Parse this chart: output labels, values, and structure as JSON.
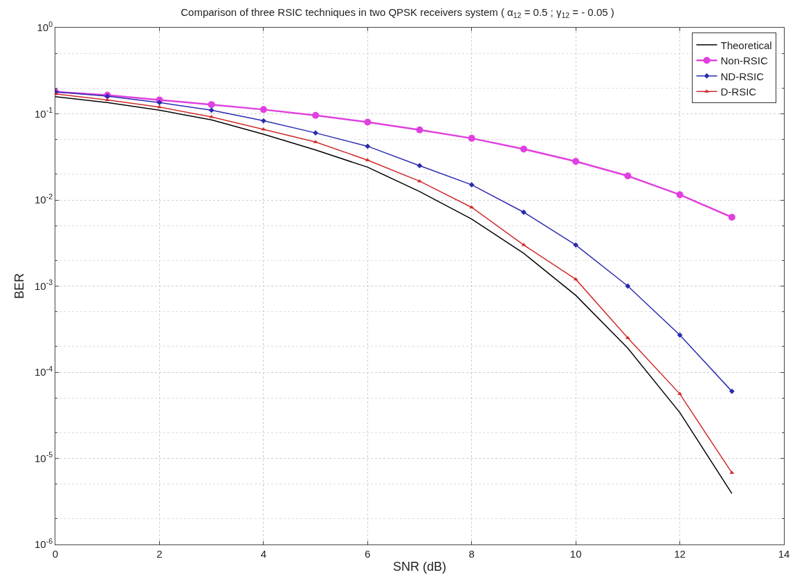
{
  "chart_data": {
    "type": "line",
    "title": "Comparison of three RSIC techniques in two QPSK receivers system ( α$_{12}$ = 0.5 ; γ$_{12}$ = - 0.05 )",
    "xlabel": "SNR (dB)",
    "ylabel": "BER",
    "x": [
      0,
      1,
      2,
      3,
      4,
      5,
      6,
      7,
      8,
      9,
      10,
      11,
      12,
      13
    ],
    "series": [
      {
        "name": "Theoretical",
        "color": "#000000",
        "marker": "none",
        "values": [
          0.158,
          0.135,
          0.11,
          0.085,
          0.058,
          0.038,
          0.024,
          0.0125,
          0.006,
          0.0024,
          0.00078,
          0.00019,
          3.4e-05,
          3.9e-06
        ]
      },
      {
        "name": "Non-RSIC",
        "color": "#e040e0",
        "marker": "circle",
        "values": [
          0.18,
          0.165,
          0.145,
          0.128,
          0.112,
          0.096,
          0.08,
          0.065,
          0.052,
          0.039,
          0.028,
          0.019,
          0.0115,
          0.0063
        ]
      },
      {
        "name": "ND-RSIC",
        "color": "#2a2ab0",
        "marker": "diamond",
        "values": [
          0.18,
          0.16,
          0.135,
          0.11,
          0.083,
          0.06,
          0.042,
          0.025,
          0.015,
          0.0072,
          0.003,
          0.001,
          0.00027,
          6e-05
        ]
      },
      {
        "name": "D-RSIC",
        "color": "#d02a2a",
        "marker": "triangle",
        "values": [
          0.17,
          0.145,
          0.12,
          0.092,
          0.066,
          0.047,
          0.029,
          0.0165,
          0.0082,
          0.003,
          0.0012,
          0.00025,
          5.6e-05,
          6.8e-06
        ]
      }
    ],
    "log": "y",
    "xlim": [
      0,
      14
    ],
    "xticks": [
      0,
      2,
      4,
      6,
      8,
      10,
      12,
      14
    ],
    "ylim": [
      1e-06,
      1
    ],
    "yticks": [
      {
        "value": 1e-06,
        "label": "10$^{-6}$"
      },
      {
        "value": 1e-05,
        "label": "10$^{-5}$"
      },
      {
        "value": 0.0001,
        "label": "10$^{-4}$"
      },
      {
        "value": 0.001,
        "label": "10$^{-3}$"
      },
      {
        "value": 0.01,
        "label": "10$^{-2}$"
      },
      {
        "value": 0.1,
        "label": "10$^{-1}$"
      },
      {
        "value": 1,
        "label": "10$^{0}$"
      }
    ],
    "grid": true,
    "legend": "top right",
    "line_style": "solid"
  }
}
